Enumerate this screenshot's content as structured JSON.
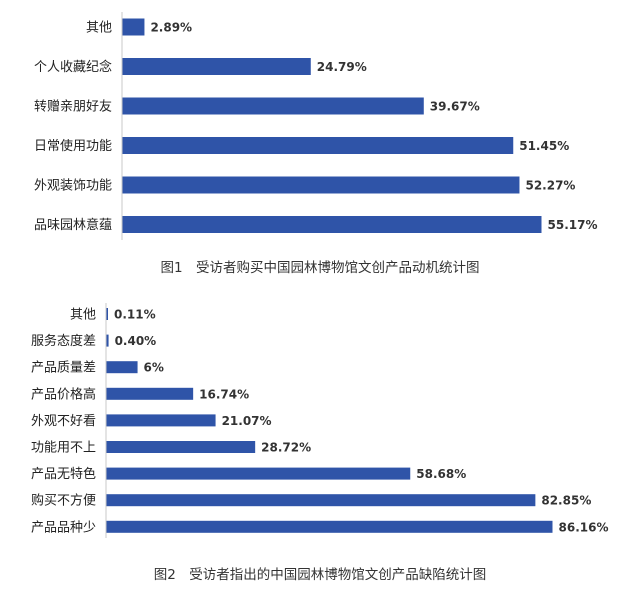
{
  "chart_data": [
    {
      "type": "bar",
      "orientation": "horizontal",
      "categories": [
        "其他",
        "个人收藏纪念",
        "转赠亲朋好友",
        "日常使用功能",
        "外观装饰功能",
        "品味园林意蕴"
      ],
      "values": [
        2.89,
        24.79,
        39.67,
        51.45,
        52.27,
        55.17
      ],
      "value_labels": [
        "2.89%",
        "24.79%",
        "39.67%",
        "51.45%",
        "52.27%",
        "55.17%"
      ],
      "caption": "图1　受访者购买中国园林博物馆文创产品动机统计图",
      "xlim": [
        0,
        55.17
      ],
      "bar_color": "#2f54a8"
    },
    {
      "type": "bar",
      "orientation": "horizontal",
      "categories": [
        "其他",
        "服务态度差",
        "产品质量差",
        "产品价格高",
        "外观不好看",
        "功能用不上",
        "产品无特色",
        "购买不方便",
        "产品品种少"
      ],
      "values": [
        0.11,
        0.4,
        6,
        16.74,
        21.07,
        28.72,
        58.68,
        82.85,
        86.16
      ],
      "value_labels": [
        "0.11%",
        "0.40%",
        "6%",
        "16.74%",
        "21.07%",
        "28.72%",
        "58.68%",
        "82.85%",
        "86.16%"
      ],
      "caption": "图2　受访者指出的中国园林博物馆文创产品缺陷统计图",
      "xlim": [
        0,
        86.16
      ],
      "bar_color": "#2f54a8"
    }
  ]
}
